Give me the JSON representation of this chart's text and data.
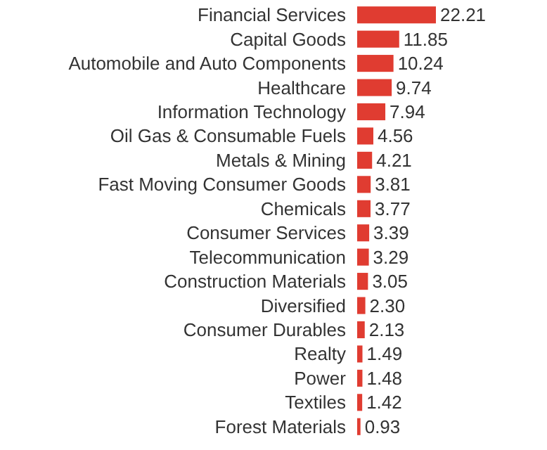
{
  "chart_data": {
    "type": "bar",
    "orientation": "horizontal",
    "categories": [
      "Financial Services",
      "Capital Goods",
      "Automobile and Auto Components",
      "Healthcare",
      "Information Technology",
      "Oil Gas & Consumable Fuels",
      "Metals & Mining",
      "Fast Moving Consumer Goods",
      "Chemicals",
      "Consumer Services",
      "Telecommunication",
      "Construction Materials",
      "Diversified",
      "Consumer Durables",
      "Realty",
      "Power",
      "Textiles",
      "Forest Materials"
    ],
    "values": [
      22.21,
      11.85,
      10.24,
      9.74,
      7.94,
      4.56,
      4.21,
      3.81,
      3.77,
      3.39,
      3.29,
      3.05,
      2.3,
      2.13,
      1.49,
      1.48,
      1.42,
      0.93
    ],
    "value_labels": [
      "22.21",
      "11.85",
      "10.24",
      "9.74",
      "7.94",
      "4.56",
      "4.21",
      "3.81",
      "3.77",
      "3.39",
      "3.29",
      "3.05",
      "2.30",
      "2.13",
      "1.49",
      "1.48",
      "1.42",
      "0.93"
    ],
    "color": "#e03c31"
  }
}
